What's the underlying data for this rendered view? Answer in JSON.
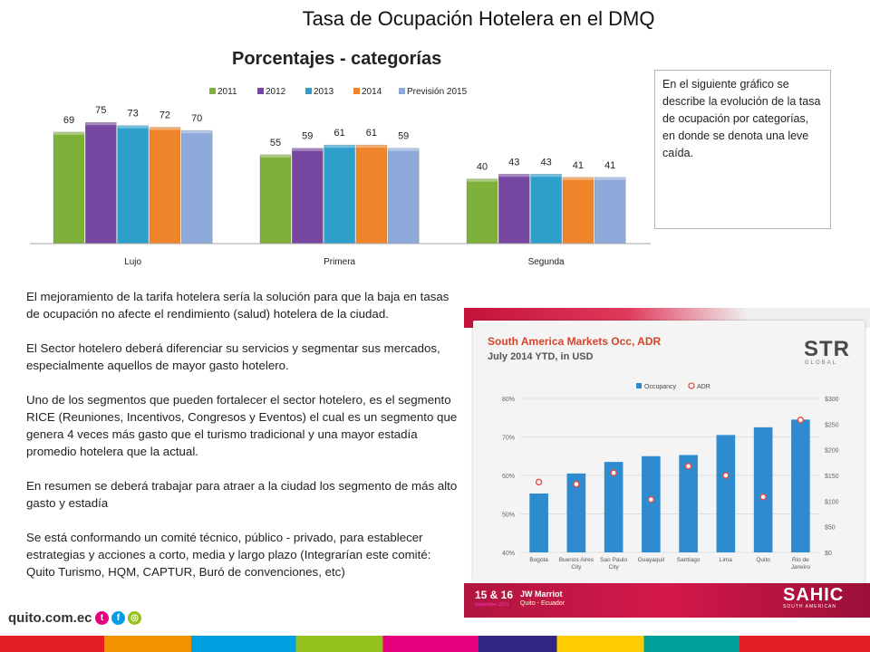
{
  "page": {
    "title": "Tasa de Ocupación Hotelera en el DMQ"
  },
  "note_box": {
    "text": "En el siguiente gráfico se describe la evolución de la tasa de ocupación por categorías, en donde se denota una leve caída."
  },
  "body_text": {
    "paragraphs": [
      "El mejoramiento de la tarifa hotelera sería la solución para que la baja en tasas de ocupación no afecte el rendimiento (salud) hotelera de la ciudad.",
      "El Sector hotelero deberá diferenciar su servicios y segmentar sus mercados, especialmente aquellos de mayor gasto hotelero.",
      "Uno de los segmentos que pueden fortalecer el sector hotelero, es el segmento RICE (Reuniones, Incentivos, Congresos y Eventos) el cual es un segmento que genera 4 veces más gasto que el turismo tradicional y una mayor estadía promedio hotelera que la actual.",
      "En resumen se deberá trabajar para atraer a la ciudad los segmento de más alto gasto y estadía",
      "Se está conformando un comité técnico, público - privado, para establecer estrategias y acciones a corto, media y largo plazo (Integrarían este comité: Quito Turismo, HQM, CAPTUR, Buró de convenciones, etc)"
    ]
  },
  "photo": {
    "str_title": "South America Markets Occ, ADR",
    "str_subtitle": "July 2014 YTD, in USD",
    "str_logo": "STR",
    "str_logo_sub": "GLOBAL",
    "event_date": "15 & 16",
    "event_date_sub": "September 2014",
    "event_venue": "JW Marriot",
    "event_venue_sub": "Quito - Ecuador",
    "sahic": "SAHIC",
    "sahic_sub": "SOUTH AMERICAN"
  },
  "footer": {
    "logo_text": "quito.com.ec"
  },
  "colors": {
    "2011": "#7fb13a",
    "2012": "#7547a1",
    "2013": "#2e9fcb",
    "2014": "#f0842a",
    "prevision": "#8eaadb",
    "occupancy": "#2e8bd0",
    "adr": "#e5514b"
  },
  "chart_data": [
    {
      "type": "bar",
      "title": "Porcentajes - categorías",
      "categories": [
        "Lujo",
        "Primera",
        "Segunda"
      ],
      "series": [
        {
          "name": "2011",
          "values": [
            69,
            55,
            40
          ]
        },
        {
          "name": "2012",
          "values": [
            75,
            59,
            43
          ]
        },
        {
          "name": "2013",
          "values": [
            73,
            61,
            43
          ]
        },
        {
          "name": "2014",
          "values": [
            72,
            61,
            41
          ]
        },
        {
          "name": "Previsión 2015",
          "values": [
            70,
            59,
            41
          ]
        }
      ],
      "ylim": [
        0,
        80
      ],
      "legend": "top",
      "grid": false
    },
    {
      "type": "bar",
      "title": "South America Markets Occ, ADR",
      "subtitle": "July 2014 YTD, in USD",
      "categories": [
        "Bogota",
        "Buenos Aires City",
        "Sao Paulo City",
        "Guayaquil",
        "Santiago",
        "Lima",
        "Quito",
        "Rio de Janeiro"
      ],
      "series": [
        {
          "name": "Occupancy",
          "type": "bar",
          "values": [
            55.3,
            60.5,
            63.5,
            65,
            65.3,
            70.5,
            72.5,
            74.5
          ]
        },
        {
          "name": "ADR",
          "type": "scatter",
          "values": [
            137,
            133,
            155,
            103,
            168,
            150,
            108,
            258
          ]
        }
      ],
      "y_left": {
        "ticks": [
          "40%",
          "50%",
          "60%",
          "70%",
          "80%"
        ],
        "range": [
          40,
          80
        ]
      },
      "y_right": {
        "ticks": [
          "$0",
          "$50",
          "$100",
          "$150",
          "$200",
          "$250",
          "$300"
        ],
        "range": [
          0,
          300
        ]
      },
      "legend": "top",
      "grid": true
    }
  ]
}
